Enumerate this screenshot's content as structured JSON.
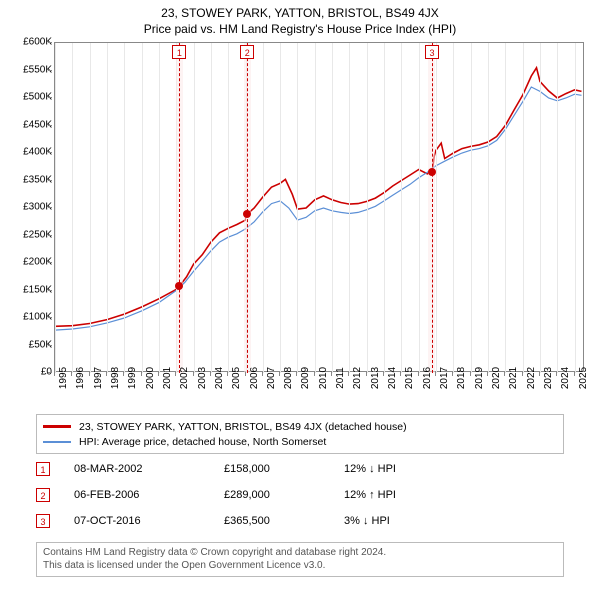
{
  "title_line1": "23, STOWEY PARK, YATTON, BRISTOL, BS49 4JX",
  "title_line2": "Price paid vs. HM Land Registry's House Price Index (HPI)",
  "chart": {
    "type": "line",
    "background_color": "#ffffff",
    "grid_color": "#e8e8e8",
    "axis_color": "#888888",
    "label_fontsize": 10,
    "x_years": [
      1995,
      1996,
      1997,
      1998,
      1999,
      2000,
      2001,
      2002,
      2003,
      2004,
      2005,
      2006,
      2007,
      2008,
      2009,
      2010,
      2011,
      2012,
      2013,
      2014,
      2015,
      2016,
      2017,
      2018,
      2019,
      2020,
      2021,
      2022,
      2023,
      2024,
      2025
    ],
    "xlim": [
      1995,
      2025.6
    ],
    "ylim": [
      0,
      600000
    ],
    "ytick_step": 50000,
    "yticks": [
      "£0",
      "£50K",
      "£100K",
      "£150K",
      "£200K",
      "£250K",
      "£300K",
      "£350K",
      "£400K",
      "£450K",
      "£500K",
      "£550K",
      "£600K"
    ],
    "series": [
      {
        "name": "property",
        "label": "23, STOWEY PARK, YATTON, BRISTOL, BS49 4JX (detached house)",
        "color": "#cc0000",
        "width": 1.6,
        "points": [
          [
            1995.0,
            85000
          ],
          [
            1996.0,
            86000
          ],
          [
            1997.0,
            90000
          ],
          [
            1998.0,
            97000
          ],
          [
            1999.0,
            107000
          ],
          [
            2000.0,
            120000
          ],
          [
            2001.0,
            135000
          ],
          [
            2002.0,
            152000
          ],
          [
            2002.18,
            158000
          ],
          [
            2002.6,
            175000
          ],
          [
            2003.0,
            198000
          ],
          [
            2003.5,
            215000
          ],
          [
            2004.0,
            238000
          ],
          [
            2004.5,
            255000
          ],
          [
            2005.0,
            263000
          ],
          [
            2005.5,
            270000
          ],
          [
            2006.0,
            278000
          ],
          [
            2006.1,
            289000
          ],
          [
            2006.5,
            300000
          ],
          [
            2007.0,
            320000
          ],
          [
            2007.5,
            338000
          ],
          [
            2008.0,
            345000
          ],
          [
            2008.3,
            352000
          ],
          [
            2008.7,
            325000
          ],
          [
            2009.0,
            298000
          ],
          [
            2009.5,
            300000
          ],
          [
            2010.0,
            315000
          ],
          [
            2010.5,
            322000
          ],
          [
            2011.0,
            315000
          ],
          [
            2011.5,
            310000
          ],
          [
            2012.0,
            307000
          ],
          [
            2012.5,
            308000
          ],
          [
            2013.0,
            312000
          ],
          [
            2013.5,
            318000
          ],
          [
            2014.0,
            328000
          ],
          [
            2014.5,
            340000
          ],
          [
            2015.0,
            350000
          ],
          [
            2015.5,
            360000
          ],
          [
            2016.0,
            370000
          ],
          [
            2016.5,
            362000
          ],
          [
            2016.77,
            365500
          ],
          [
            2016.9,
            395000
          ],
          [
            2017.0,
            405000
          ],
          [
            2017.3,
            418000
          ],
          [
            2017.5,
            390000
          ],
          [
            2018.0,
            400000
          ],
          [
            2018.5,
            408000
          ],
          [
            2019.0,
            412000
          ],
          [
            2019.5,
            415000
          ],
          [
            2020.0,
            420000
          ],
          [
            2020.5,
            430000
          ],
          [
            2021.0,
            450000
          ],
          [
            2021.5,
            478000
          ],
          [
            2022.0,
            505000
          ],
          [
            2022.5,
            540000
          ],
          [
            2022.8,
            555000
          ],
          [
            2023.0,
            530000
          ],
          [
            2023.5,
            513000
          ],
          [
            2024.0,
            500000
          ],
          [
            2024.5,
            508000
          ],
          [
            2025.0,
            515000
          ],
          [
            2025.4,
            512000
          ]
        ]
      },
      {
        "name": "hpi",
        "label": "HPI: Average price, detached house, North Somerset",
        "color": "#5b8fd6",
        "width": 1.2,
        "points": [
          [
            1995.0,
            78000
          ],
          [
            1996.0,
            80000
          ],
          [
            1997.0,
            84000
          ],
          [
            1998.0,
            91000
          ],
          [
            1999.0,
            100000
          ],
          [
            2000.0,
            113000
          ],
          [
            2001.0,
            128000
          ],
          [
            2002.0,
            150000
          ],
          [
            2002.5,
            165000
          ],
          [
            2003.0,
            185000
          ],
          [
            2003.5,
            203000
          ],
          [
            2004.0,
            222000
          ],
          [
            2004.5,
            238000
          ],
          [
            2005.0,
            247000
          ],
          [
            2005.5,
            253000
          ],
          [
            2006.0,
            262000
          ],
          [
            2006.5,
            275000
          ],
          [
            2007.0,
            293000
          ],
          [
            2007.5,
            308000
          ],
          [
            2008.0,
            313000
          ],
          [
            2008.5,
            300000
          ],
          [
            2009.0,
            278000
          ],
          [
            2009.5,
            283000
          ],
          [
            2010.0,
            295000
          ],
          [
            2010.5,
            300000
          ],
          [
            2011.0,
            295000
          ],
          [
            2011.5,
            292000
          ],
          [
            2012.0,
            290000
          ],
          [
            2012.5,
            292000
          ],
          [
            2013.0,
            297000
          ],
          [
            2013.5,
            303000
          ],
          [
            2014.0,
            313000
          ],
          [
            2014.5,
            323000
          ],
          [
            2015.0,
            333000
          ],
          [
            2015.5,
            343000
          ],
          [
            2016.0,
            355000
          ],
          [
            2016.5,
            365000
          ],
          [
            2017.0,
            377000
          ],
          [
            2017.5,
            385000
          ],
          [
            2018.0,
            393000
          ],
          [
            2018.5,
            400000
          ],
          [
            2019.0,
            405000
          ],
          [
            2019.5,
            408000
          ],
          [
            2020.0,
            413000
          ],
          [
            2020.5,
            423000
          ],
          [
            2021.0,
            443000
          ],
          [
            2021.5,
            468000
          ],
          [
            2022.0,
            493000
          ],
          [
            2022.5,
            520000
          ],
          [
            2023.0,
            512000
          ],
          [
            2023.5,
            500000
          ],
          [
            2024.0,
            495000
          ],
          [
            2024.5,
            500000
          ],
          [
            2025.0,
            507000
          ],
          [
            2025.4,
            505000
          ]
        ]
      }
    ],
    "markers": [
      {
        "n": "1",
        "date": "08-MAR-2002",
        "price": "£158,000",
        "delta": "12% ↓ HPI",
        "x": 2002.18,
        "y": 158000,
        "band": [
          2002.0,
          2002.4
        ]
      },
      {
        "n": "2",
        "date": "06-FEB-2006",
        "price": "£289,000",
        "delta": "12% ↑ HPI",
        "x": 2006.1,
        "y": 289000,
        "band": [
          2005.9,
          2006.3
        ]
      },
      {
        "n": "3",
        "date": "07-OCT-2016",
        "price": "£365,500",
        "delta": "3% ↓ HPI",
        "x": 2016.77,
        "y": 365500,
        "band": [
          2016.55,
          2016.95
        ]
      }
    ]
  },
  "legend": {
    "border_color": "#bbbbbb"
  },
  "footer_line1": "Contains HM Land Registry data © Crown copyright and database right 2024.",
  "footer_line2": "This data is licensed under the Open Government Licence v3.0."
}
